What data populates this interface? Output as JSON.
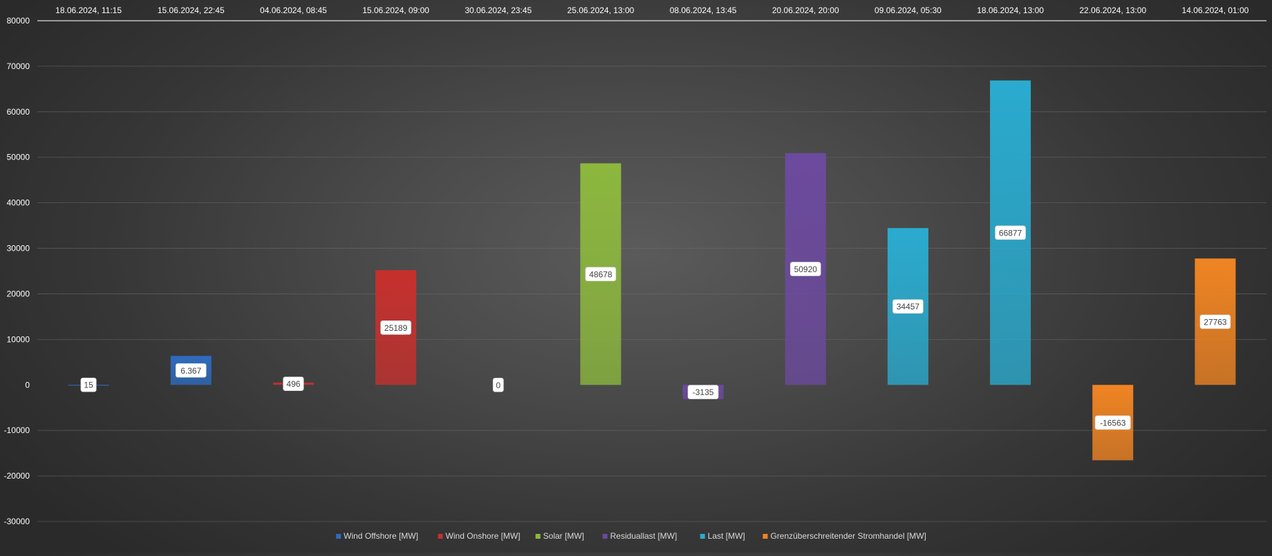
{
  "chart_data": {
    "type": "bar",
    "categories": [
      "18.06.2024, 11:15",
      "15.06.2024, 22:45",
      "04.06.2024, 08:45",
      "15.06.2024, 09:00",
      "30.06.2024, 23:45",
      "25.06.2024, 13:00",
      "08.06.2024, 13:45",
      "20.06.2024, 20:00",
      "09.06.2024, 05:30",
      "18.06.2024, 13:00",
      "22.06.2024, 13:00",
      "14.06.2024, 01:00"
    ],
    "values": [
      15,
      6367,
      496,
      25189,
      0,
      48678,
      -3135,
      50920,
      34457,
      66877,
      -16563,
      27763
    ],
    "data_labels": [
      "15",
      "6.367",
      "496",
      "25189",
      "0",
      "48678",
      "-3135",
      "50920",
      "34457",
      "66877",
      "-16563",
      "27763"
    ],
    "series_of_bar": [
      0,
      0,
      1,
      1,
      2,
      2,
      3,
      3,
      4,
      4,
      5,
      5
    ],
    "series": [
      {
        "name": "Wind Offshore [MW]",
        "color": "#2f6bbf"
      },
      {
        "name": "Wind Onshore [MW]",
        "color": "#c6302d"
      },
      {
        "name": "Solar [MW]",
        "color": "#8cb83e"
      },
      {
        "name": "Residuallast [MW]",
        "color": "#6c4a9e"
      },
      {
        "name": "Last [MW]",
        "color": "#2aabcf"
      },
      {
        "name": "Grenzüberschreitender Stromhandel [MW]",
        "color": "#f08423"
      }
    ],
    "ylim": [
      -30000,
      80000
    ],
    "yticks": [
      80000,
      70000,
      60000,
      50000,
      40000,
      30000,
      20000,
      10000,
      0,
      -10000,
      -20000,
      -30000
    ],
    "x_axis_position": "top",
    "grid": true,
    "legend_position": "bottom",
    "title": "",
    "xlabel": "",
    "ylabel": ""
  }
}
